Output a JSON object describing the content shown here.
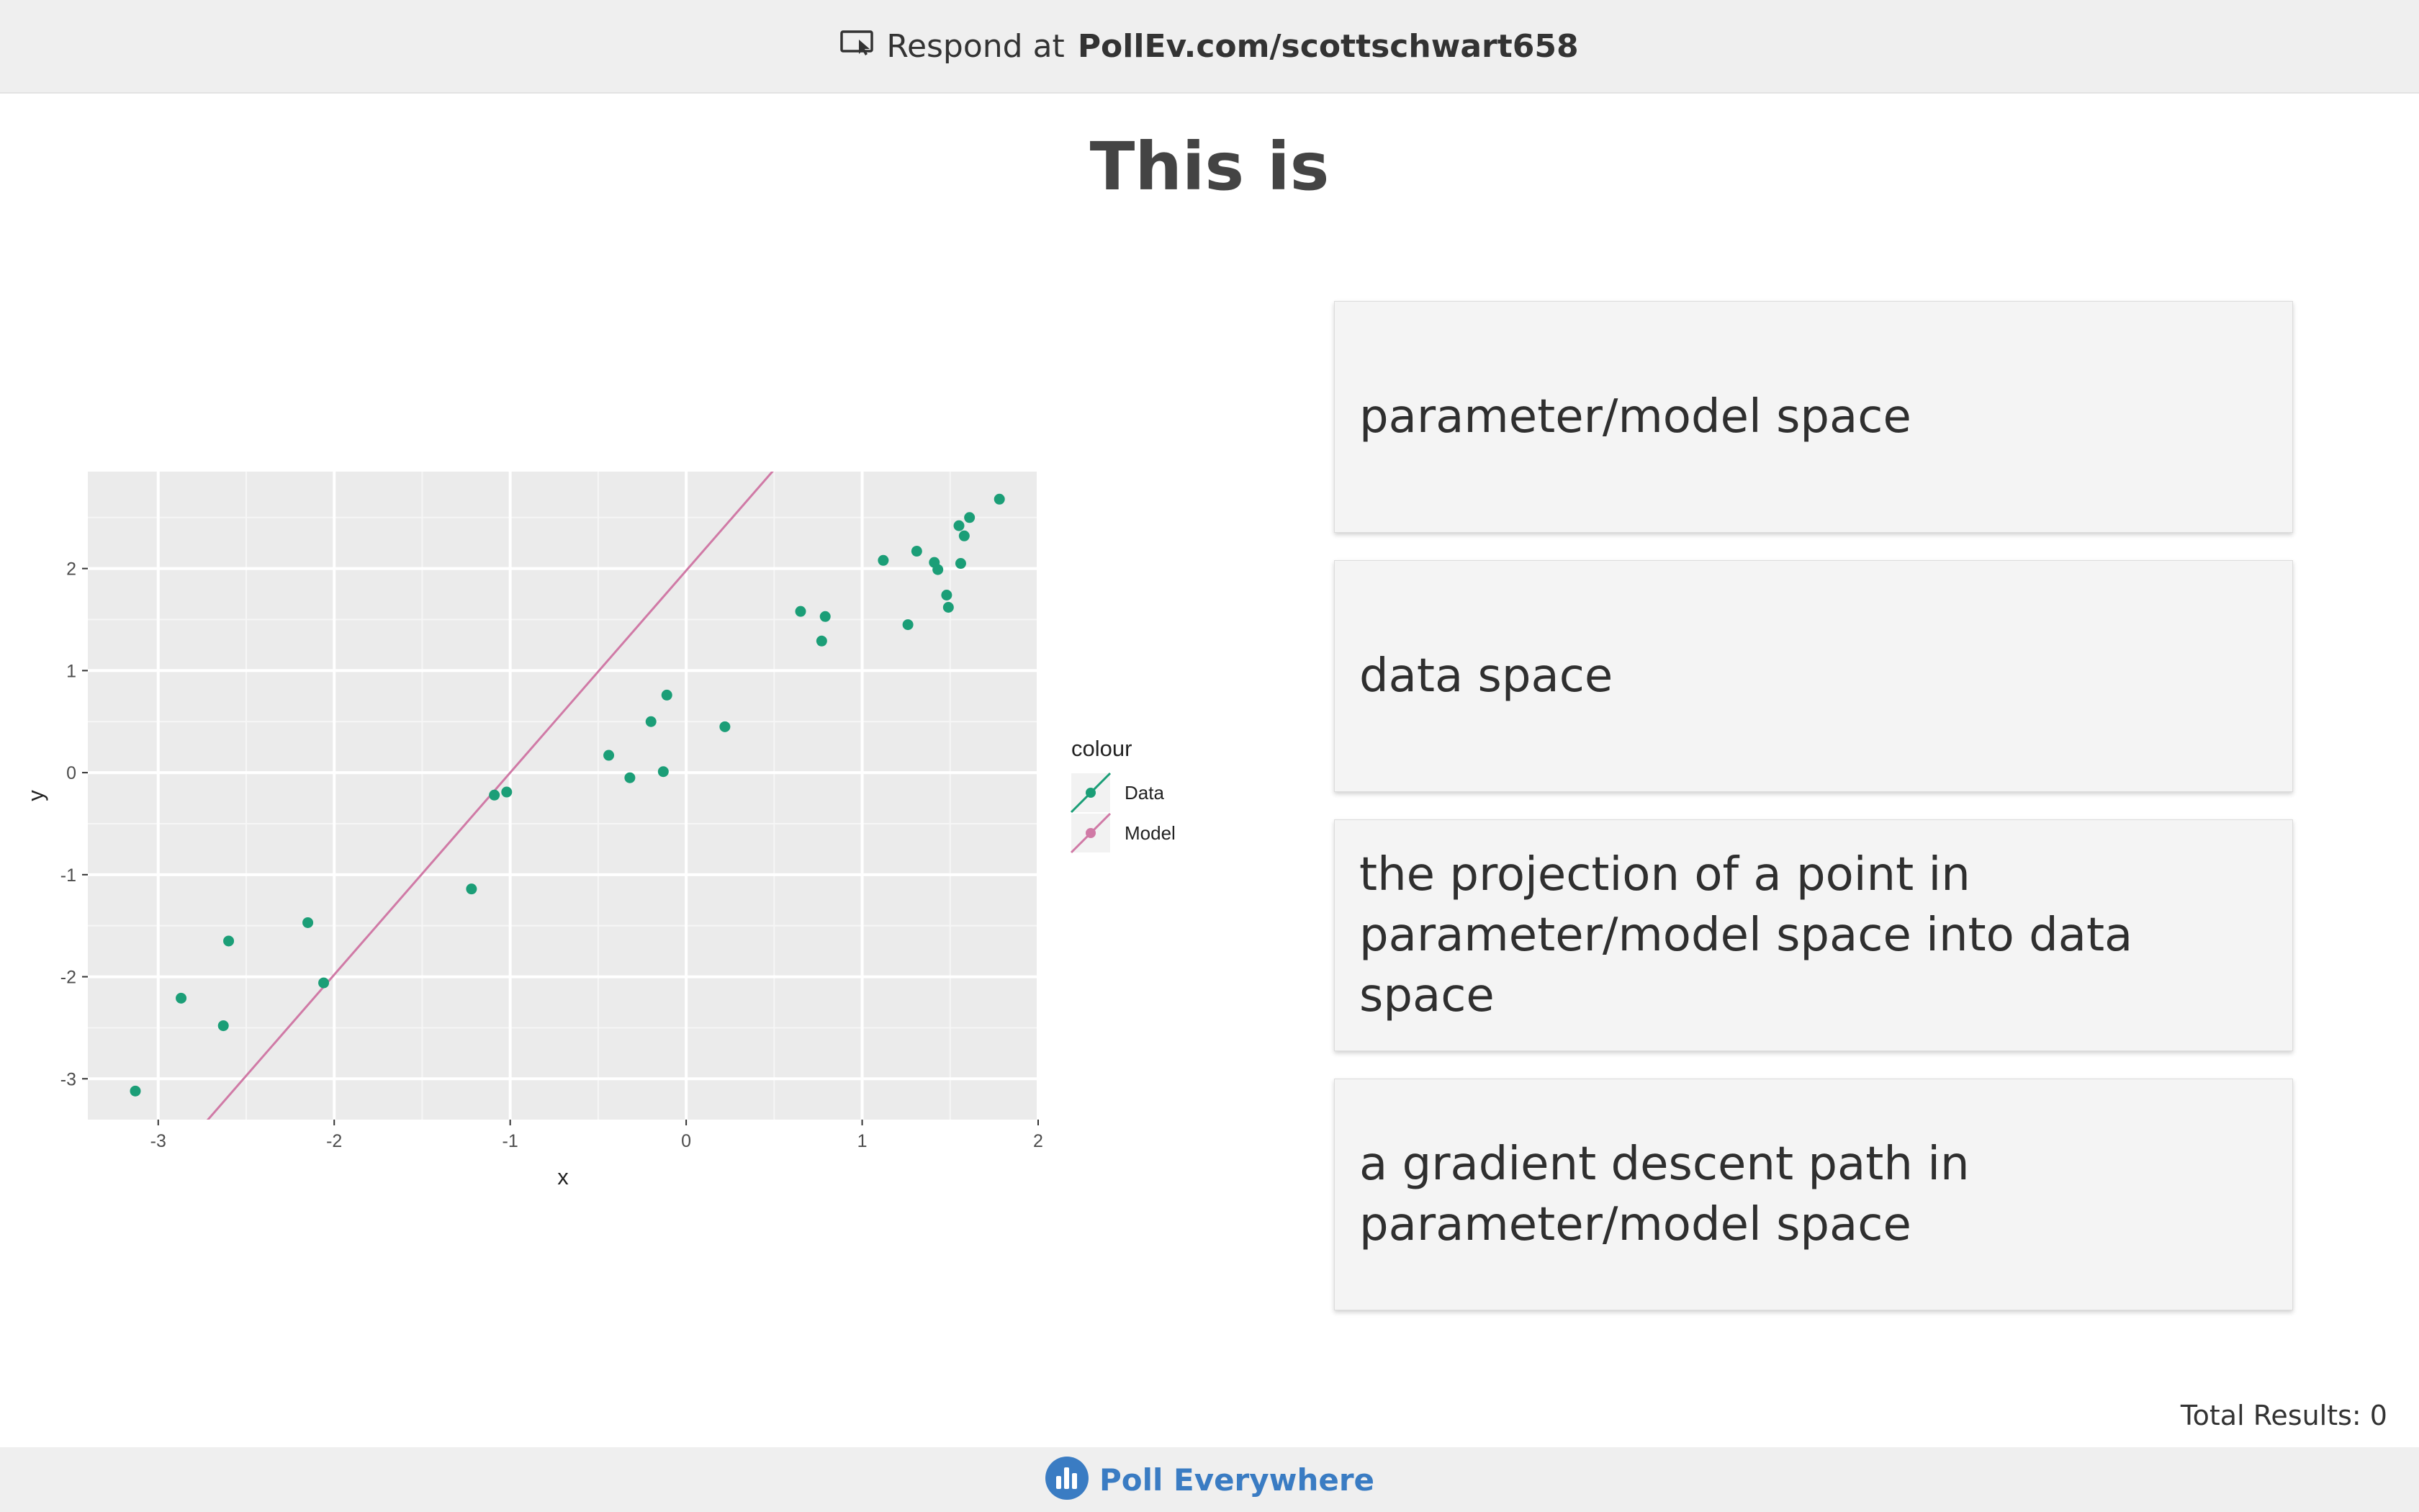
{
  "header": {
    "respond_prefix": "Respond at",
    "respond_url": "PollEv.com/scottschwart658"
  },
  "question": {
    "title": "This is"
  },
  "options": [
    {
      "label": "parameter/model space"
    },
    {
      "label": "data space"
    },
    {
      "label": "the projection of a point in\nparameter/model space into data space"
    },
    {
      "label": "a gradient descent path in\nparameter/model space"
    }
  ],
  "total_results": "Total Results: 0",
  "footer": {
    "brand": "Poll Everywhere"
  },
  "colors": {
    "data": "#1b9e77",
    "model": "#d07aa6",
    "brand": "#3a7cc3",
    "panel": "#ebebeb"
  },
  "chart_data": {
    "type": "scatter",
    "xlabel": "x",
    "ylabel": "y",
    "xlim": [
      -3.4,
      2.0
    ],
    "ylim": [
      -3.4,
      2.95
    ],
    "xticks": [
      -3,
      -2,
      -1,
      0,
      1,
      2
    ],
    "yticks": [
      -3,
      -2,
      -1,
      0,
      1,
      2
    ],
    "xtick_labels": [
      "-3",
      "-2",
      "-1",
      "0",
      "1",
      "2"
    ],
    "ytick_labels": [
      "-3",
      "-2",
      "-1",
      "0",
      "1",
      "2"
    ],
    "grid": true,
    "legend": {
      "title": "colour",
      "position": "right",
      "entries": [
        "Data",
        "Model"
      ]
    },
    "series": [
      {
        "name": "Data",
        "x": [
          -3.13,
          -2.87,
          -2.63,
          -2.6,
          -2.15,
          -2.06,
          -1.22,
          -1.09,
          -1.02,
          -0.44,
          -0.32,
          -0.2,
          -0.13,
          -0.11,
          0.22,
          0.65,
          0.77,
          0.79,
          1.12,
          1.26,
          1.31,
          1.41,
          1.43,
          1.48,
          1.49,
          1.55,
          1.56,
          1.58,
          1.61,
          1.78
        ],
        "y": [
          -3.12,
          -2.21,
          -2.48,
          -1.65,
          -1.47,
          -2.06,
          -1.14,
          -0.22,
          -0.19,
          0.17,
          -0.05,
          0.5,
          0.01,
          0.76,
          0.45,
          1.58,
          1.29,
          1.53,
          2.08,
          1.45,
          2.17,
          2.06,
          1.99,
          1.74,
          1.62,
          2.42,
          2.05,
          2.32,
          2.5,
          2.68
        ]
      },
      {
        "name": "Model",
        "line": {
          "slope": 1.98,
          "intercept": 1.98
        }
      }
    ]
  }
}
